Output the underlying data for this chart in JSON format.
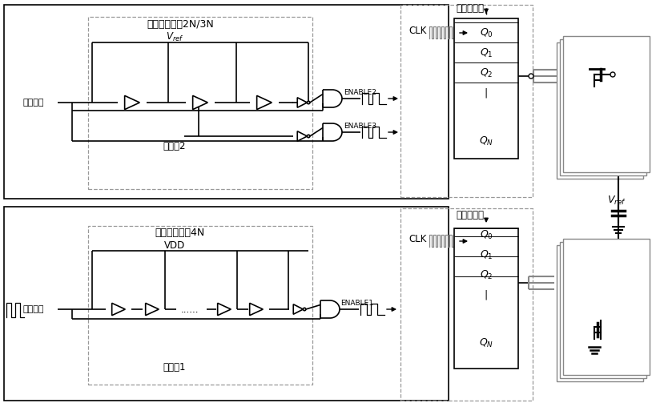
{
  "bg_color": "#ffffff",
  "line_color": "#000000",
  "gray_color": "#888888",
  "dashed_color": "#999999",
  "top_block_label": "缓冲器个数为2N/3N",
  "top_input_label": "输入脉冲",
  "top_chain_label": "延时链2",
  "top_enable2_label": "ENABLE2",
  "top_enable3_label": "ENABLE3",
  "top_clk_label": "CLK",
  "top_shift_label": "移位寄存器",
  "bot_block_label": "缓冲器个数为4N",
  "bot_vdd_label": "VDD",
  "bot_input_label": "输入脉冲",
  "bot_chain_label": "延时链1",
  "bot_enable1_label": "ENABLE1",
  "bot_clk_label": "CLK",
  "bot_shift_label": "移位寄存器"
}
